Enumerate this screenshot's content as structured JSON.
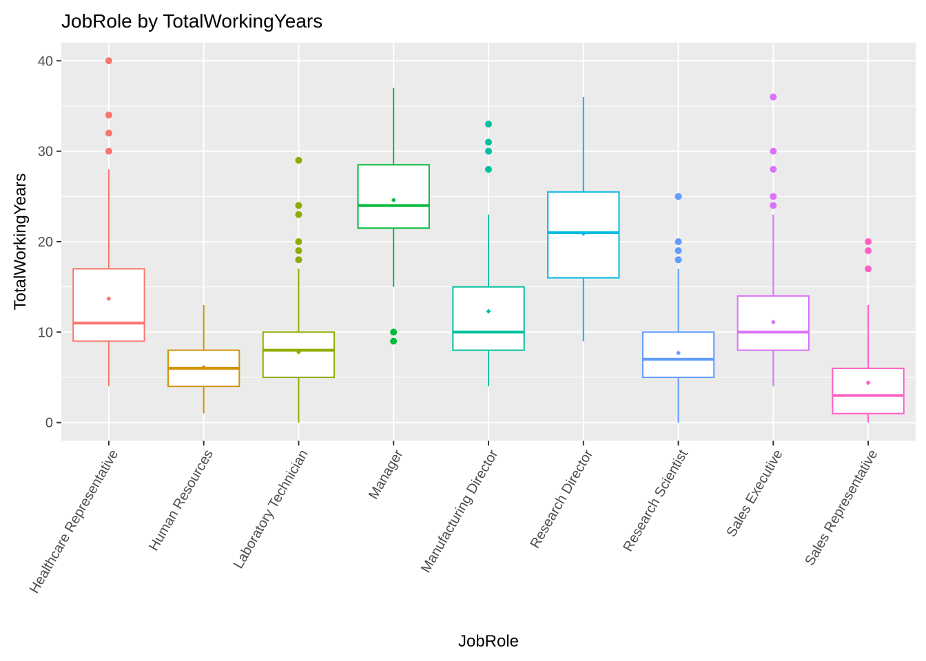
{
  "chart_data": {
    "type": "boxplot",
    "title": "JobRole by TotalWorkingYears",
    "xlabel": "JobRole",
    "ylabel": "TotalWorkingYears",
    "ylim": [
      -2,
      42
    ],
    "yticks": [
      0,
      10,
      20,
      30,
      40
    ],
    "grid": true,
    "legend": "none",
    "background_color": "#ebebeb",
    "grid_color": "#ffffff",
    "categories": [
      "Healthcare Representative",
      "Human Resources",
      "Laboratory Technician",
      "Manager",
      "Manufacturing Director",
      "Research Director",
      "Research Scientist",
      "Sales Executive",
      "Sales Representative"
    ],
    "boxes": [
      {
        "category": "Healthcare Representative",
        "color": "#F8766D",
        "whisker_low": 4,
        "q1": 9,
        "median": 11,
        "q3": 17,
        "whisker_high": 28,
        "mean": 13.7,
        "outliers": [
          30,
          32,
          34,
          40
        ]
      },
      {
        "category": "Human Resources",
        "color": "#D39200",
        "whisker_low": 1,
        "q1": 4,
        "median": 6,
        "q3": 8,
        "whisker_high": 13,
        "mean": 6.1,
        "outliers": []
      },
      {
        "category": "Laboratory Technician",
        "color": "#93AA00",
        "whisker_low": 0,
        "q1": 5,
        "median": 8,
        "q3": 10,
        "whisker_high": 17,
        "mean": 7.8,
        "outliers": [
          18,
          19,
          20,
          23,
          24,
          29
        ]
      },
      {
        "category": "Manager",
        "color": "#00BA38",
        "whisker_low": 15,
        "q1": 21.5,
        "median": 24,
        "q3": 28.5,
        "whisker_high": 37,
        "mean": 24.6,
        "outliers": [
          9,
          10
        ]
      },
      {
        "category": "Manufacturing Director",
        "color": "#00C19F",
        "whisker_low": 4,
        "q1": 8,
        "median": 10,
        "q3": 15,
        "whisker_high": 23,
        "mean": 12.3,
        "outliers": [
          28,
          30,
          31,
          33
        ]
      },
      {
        "category": "Research Director",
        "color": "#00B9E3",
        "whisker_low": 9,
        "q1": 16,
        "median": 21,
        "q3": 25.5,
        "whisker_high": 36,
        "mean": 20.9,
        "outliers": []
      },
      {
        "category": "Research Scientist",
        "color": "#619CFF",
        "whisker_low": 0,
        "q1": 5,
        "median": 7,
        "q3": 10,
        "whisker_high": 17,
        "mean": 7.7,
        "outliers": [
          18,
          19,
          20,
          25
        ]
      },
      {
        "category": "Sales Executive",
        "color": "#DB72FB",
        "whisker_low": 4,
        "q1": 8,
        "median": 10,
        "q3": 14,
        "whisker_high": 23,
        "mean": 11.1,
        "outliers": [
          24,
          25,
          28,
          30,
          36
        ]
      },
      {
        "category": "Sales Representative",
        "color": "#FF61C3",
        "whisker_low": 0,
        "q1": 1,
        "median": 3,
        "q3": 6,
        "whisker_high": 13,
        "mean": 4.4,
        "outliers": [
          17,
          19,
          20
        ]
      }
    ]
  }
}
